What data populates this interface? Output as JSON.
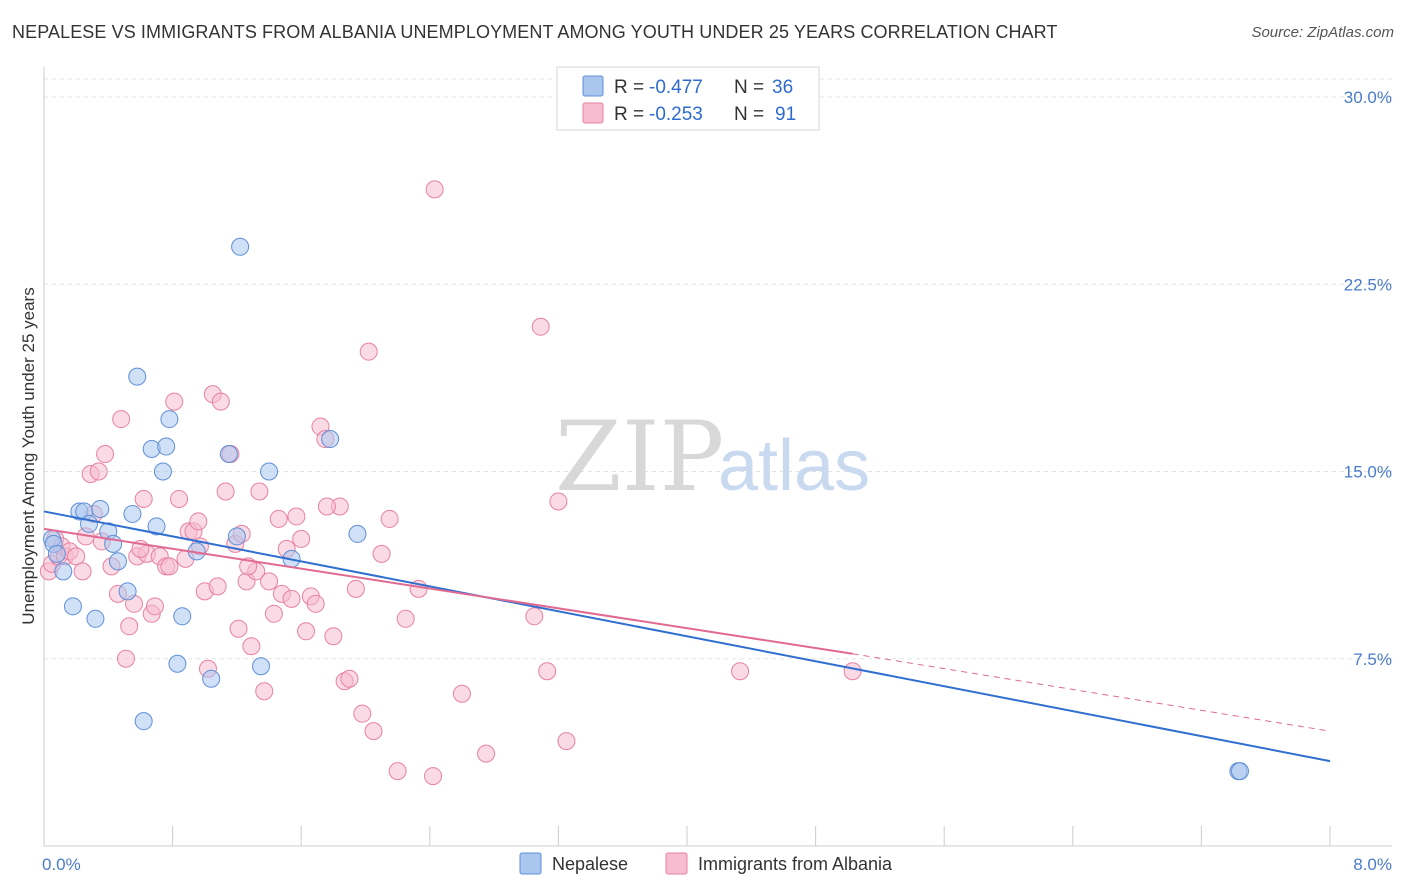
{
  "title": "NEPALESE VS IMMIGRANTS FROM ALBANIA UNEMPLOYMENT AMONG YOUTH UNDER 25 YEARS CORRELATION CHART",
  "source": "Source: ZipAtlas.com",
  "watermark": {
    "zip": "ZIP",
    "atlas": "atlas"
  },
  "colors": {
    "nepalese_fill": "#a9c6ef",
    "nepalese_stroke": "#5f8fd8",
    "nepalese_line": "#2f6fd0",
    "albania_fill": "#f6bcd0",
    "albania_stroke": "#e8829f",
    "albania_line": "#e06a92",
    "grid": "#e3e3e3",
    "tick_label": "#4a7cc9"
  },
  "legend": {
    "rows": [
      {
        "r_label": "R = ",
        "r_value": "-0.477",
        "n_label": "N = ",
        "n_value": "36"
      },
      {
        "r_label": "R = ",
        "r_value": "-0.253",
        "n_label": "N = ",
        "n_value": "91"
      }
    ]
  },
  "chart_data": {
    "type": "scatter",
    "title": "NEPALESE VS IMMIGRANTS FROM ALBANIA UNEMPLOYMENT AMONG YOUTH UNDER 25 YEARS CORRELATION CHART",
    "xlabel": "",
    "ylabel": "Unemployment Among Youth under 25 years",
    "xlim": [
      0,
      8.0
    ],
    "ylim": [
      0,
      30.0
    ],
    "x_tick_labels": [
      "0.0%",
      "8.0%"
    ],
    "y_ticks": [
      7.5,
      15.0,
      22.5,
      30.0
    ],
    "y_tick_labels": [
      "7.5%",
      "15.0%",
      "22.5%",
      "30.0%"
    ],
    "grid": true,
    "legend_position": "top-center",
    "series": [
      {
        "name": "Nepalese",
        "r": -0.477,
        "n": 36,
        "points": [
          [
            0.05,
            12.3
          ],
          [
            0.06,
            12.1
          ],
          [
            0.08,
            11.7
          ],
          [
            0.12,
            11.0
          ],
          [
            0.18,
            9.6
          ],
          [
            0.22,
            13.4
          ],
          [
            0.25,
            13.4
          ],
          [
            0.28,
            12.9
          ],
          [
            0.32,
            9.1
          ],
          [
            0.35,
            13.5
          ],
          [
            0.4,
            12.6
          ],
          [
            0.43,
            12.1
          ],
          [
            0.46,
            11.4
          ],
          [
            0.52,
            10.2
          ],
          [
            0.55,
            13.3
          ],
          [
            0.58,
            18.8
          ],
          [
            0.62,
            5.0
          ],
          [
            0.67,
            15.9
          ],
          [
            0.7,
            12.8
          ],
          [
            0.74,
            15.0
          ],
          [
            0.76,
            16.0
          ],
          [
            0.78,
            17.1
          ],
          [
            0.83,
            7.3
          ],
          [
            0.86,
            9.2
          ],
          [
            0.95,
            11.8
          ],
          [
            1.04,
            6.7
          ],
          [
            1.15,
            15.7
          ],
          [
            1.2,
            12.4
          ],
          [
            1.22,
            24.0
          ],
          [
            1.35,
            7.2
          ],
          [
            1.4,
            15.0
          ],
          [
            1.54,
            11.5
          ],
          [
            1.78,
            16.3
          ],
          [
            1.95,
            12.5
          ],
          [
            7.43,
            3.0
          ],
          [
            7.44,
            3.0
          ]
        ]
      },
      {
        "name": "Immigrants from Albania",
        "r": -0.253,
        "n": 91,
        "points": [
          [
            0.03,
            11.0
          ],
          [
            0.05,
            11.3
          ],
          [
            0.07,
            12.3
          ],
          [
            0.09,
            11.6
          ],
          [
            0.11,
            12.0
          ],
          [
            0.13,
            11.6
          ],
          [
            0.16,
            11.8
          ],
          [
            0.2,
            11.6
          ],
          [
            0.24,
            11.0
          ],
          [
            0.26,
            12.4
          ],
          [
            0.29,
            14.9
          ],
          [
            0.31,
            13.3
          ],
          [
            0.34,
            15.0
          ],
          [
            0.36,
            12.2
          ],
          [
            0.38,
            15.7
          ],
          [
            0.42,
            11.2
          ],
          [
            0.46,
            10.1
          ],
          [
            0.48,
            17.1
          ],
          [
            0.51,
            7.5
          ],
          [
            0.53,
            8.8
          ],
          [
            0.56,
            9.7
          ],
          [
            0.58,
            11.6
          ],
          [
            0.62,
            13.9
          ],
          [
            0.64,
            11.7
          ],
          [
            0.67,
            9.3
          ],
          [
            0.69,
            9.6
          ],
          [
            0.72,
            11.6
          ],
          [
            0.76,
            11.2
          ],
          [
            0.78,
            11.2
          ],
          [
            0.81,
            17.8
          ],
          [
            0.84,
            13.9
          ],
          [
            0.88,
            11.5
          ],
          [
            0.9,
            12.6
          ],
          [
            0.93,
            12.6
          ],
          [
            0.96,
            13.0
          ],
          [
            1.0,
            10.2
          ],
          [
            1.02,
            7.1
          ],
          [
            1.05,
            18.1
          ],
          [
            1.08,
            10.4
          ],
          [
            1.1,
            17.8
          ],
          [
            1.13,
            14.2
          ],
          [
            1.16,
            15.7
          ],
          [
            1.19,
            12.1
          ],
          [
            1.21,
            8.7
          ],
          [
            1.23,
            12.5
          ],
          [
            1.26,
            10.6
          ],
          [
            1.29,
            8.0
          ],
          [
            1.32,
            11.0
          ],
          [
            1.34,
            14.2
          ],
          [
            1.37,
            6.2
          ],
          [
            1.4,
            10.6
          ],
          [
            1.43,
            9.3
          ],
          [
            1.46,
            13.1
          ],
          [
            1.48,
            10.1
          ],
          [
            1.51,
            11.9
          ],
          [
            1.54,
            9.9
          ],
          [
            1.57,
            13.2
          ],
          [
            1.6,
            12.3
          ],
          [
            1.63,
            8.6
          ],
          [
            1.66,
            10.0
          ],
          [
            1.69,
            9.7
          ],
          [
            1.72,
            16.8
          ],
          [
            1.75,
            16.3
          ],
          [
            1.8,
            8.4
          ],
          [
            1.84,
            13.6
          ],
          [
            1.87,
            6.6
          ],
          [
            1.9,
            6.7
          ],
          [
            1.94,
            10.3
          ],
          [
            1.98,
            5.3
          ],
          [
            2.02,
            19.8
          ],
          [
            2.05,
            4.6
          ],
          [
            2.1,
            11.7
          ],
          [
            2.15,
            13.1
          ],
          [
            2.2,
            3.0
          ],
          [
            2.25,
            9.1
          ],
          [
            2.33,
            10.3
          ],
          [
            2.42,
            2.8
          ],
          [
            2.43,
            26.3
          ],
          [
            2.6,
            6.1
          ],
          [
            2.75,
            3.7
          ],
          [
            3.05,
            9.2
          ],
          [
            3.09,
            20.8
          ],
          [
            3.13,
            7.0
          ],
          [
            3.2,
            13.8
          ],
          [
            3.25,
            4.2
          ],
          [
            4.33,
            7.0
          ],
          [
            5.03,
            7.0
          ],
          [
            1.76,
            13.6
          ],
          [
            0.97,
            12.0
          ],
          [
            1.27,
            11.2
          ],
          [
            0.6,
            11.9
          ]
        ]
      }
    ],
    "trend_lines": [
      {
        "series": "Nepalese",
        "x": [
          0.0,
          8.0
        ],
        "y": [
          13.4,
          3.4
        ],
        "style": "solid"
      },
      {
        "series": "Immigrants from Albania",
        "x": [
          0.0,
          5.03
        ],
        "y": [
          12.7,
          7.7
        ],
        "style": "solid"
      },
      {
        "series": "Immigrants from Albania",
        "x": [
          5.03,
          8.0
        ],
        "y": [
          7.7,
          4.6
        ],
        "style": "dashed"
      }
    ]
  }
}
